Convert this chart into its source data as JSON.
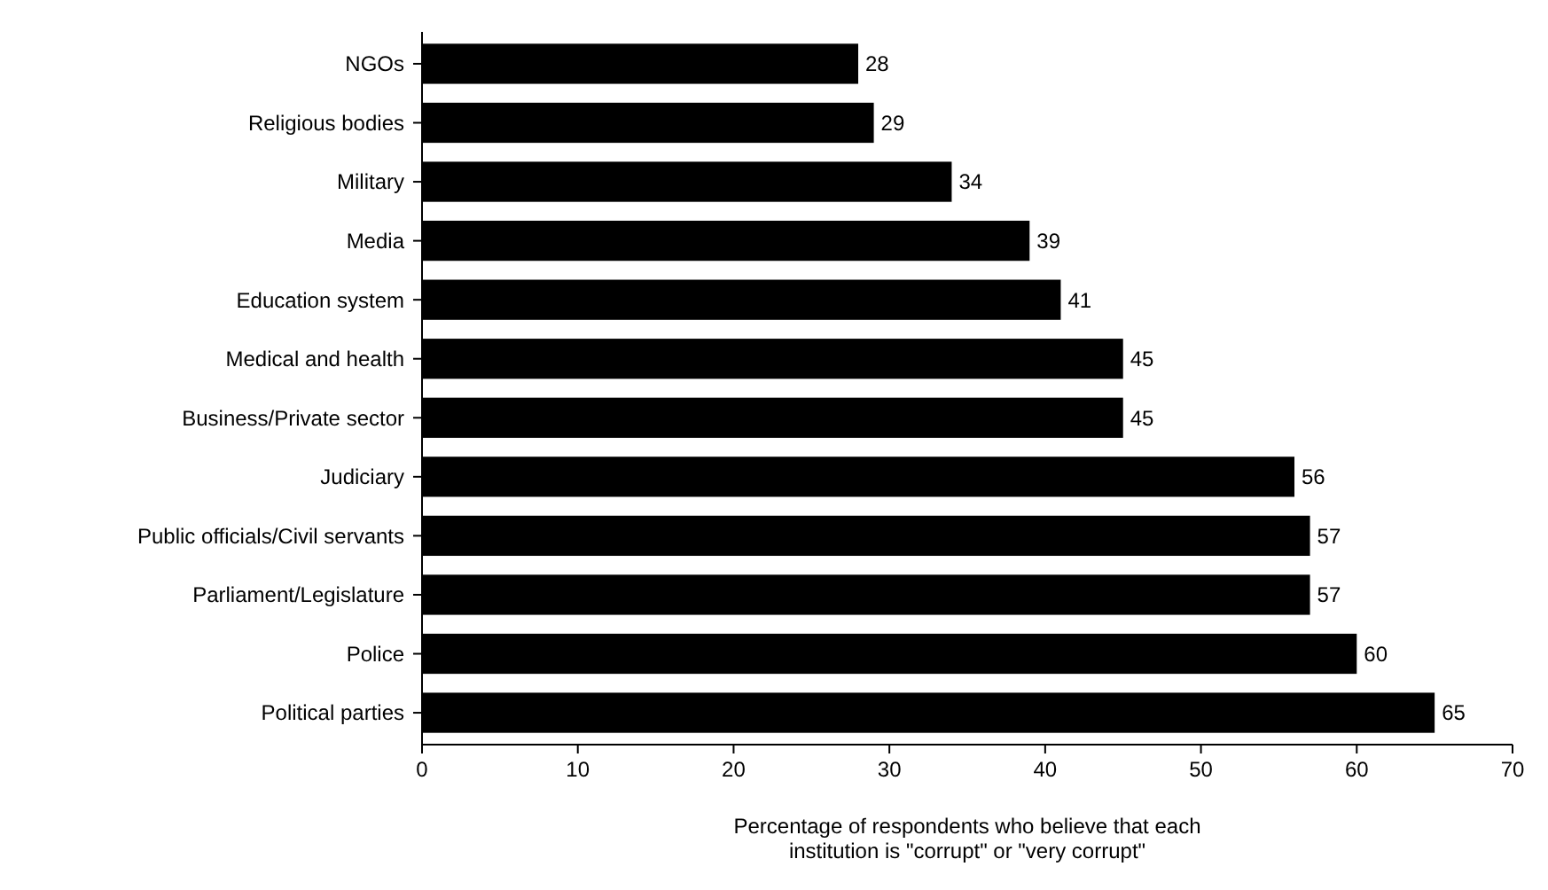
{
  "chart_data": {
    "type": "bar",
    "orientation": "horizontal",
    "xlabel": "Percentage of respondents who believe that each\ninstitution is \"corrupt\" or \"very corrupt\"",
    "categories": [
      "NGOs",
      "Religious bodies",
      "Military",
      "Media",
      "Education system",
      "Medical and health",
      "Business/Private sector",
      "Judiciary",
      "Public officials/Civil servants",
      "Parliament/Legislature",
      "Police",
      "Political parties"
    ],
    "values": [
      28,
      29,
      34,
      39,
      41,
      45,
      45,
      56,
      57,
      57,
      60,
      65
    ],
    "color": "#000000",
    "data_labels": true,
    "xlim": [
      0,
      70
    ],
    "xticks": [
      0,
      10,
      20,
      30,
      40,
      50,
      60,
      70
    ],
    "grid": false
  }
}
